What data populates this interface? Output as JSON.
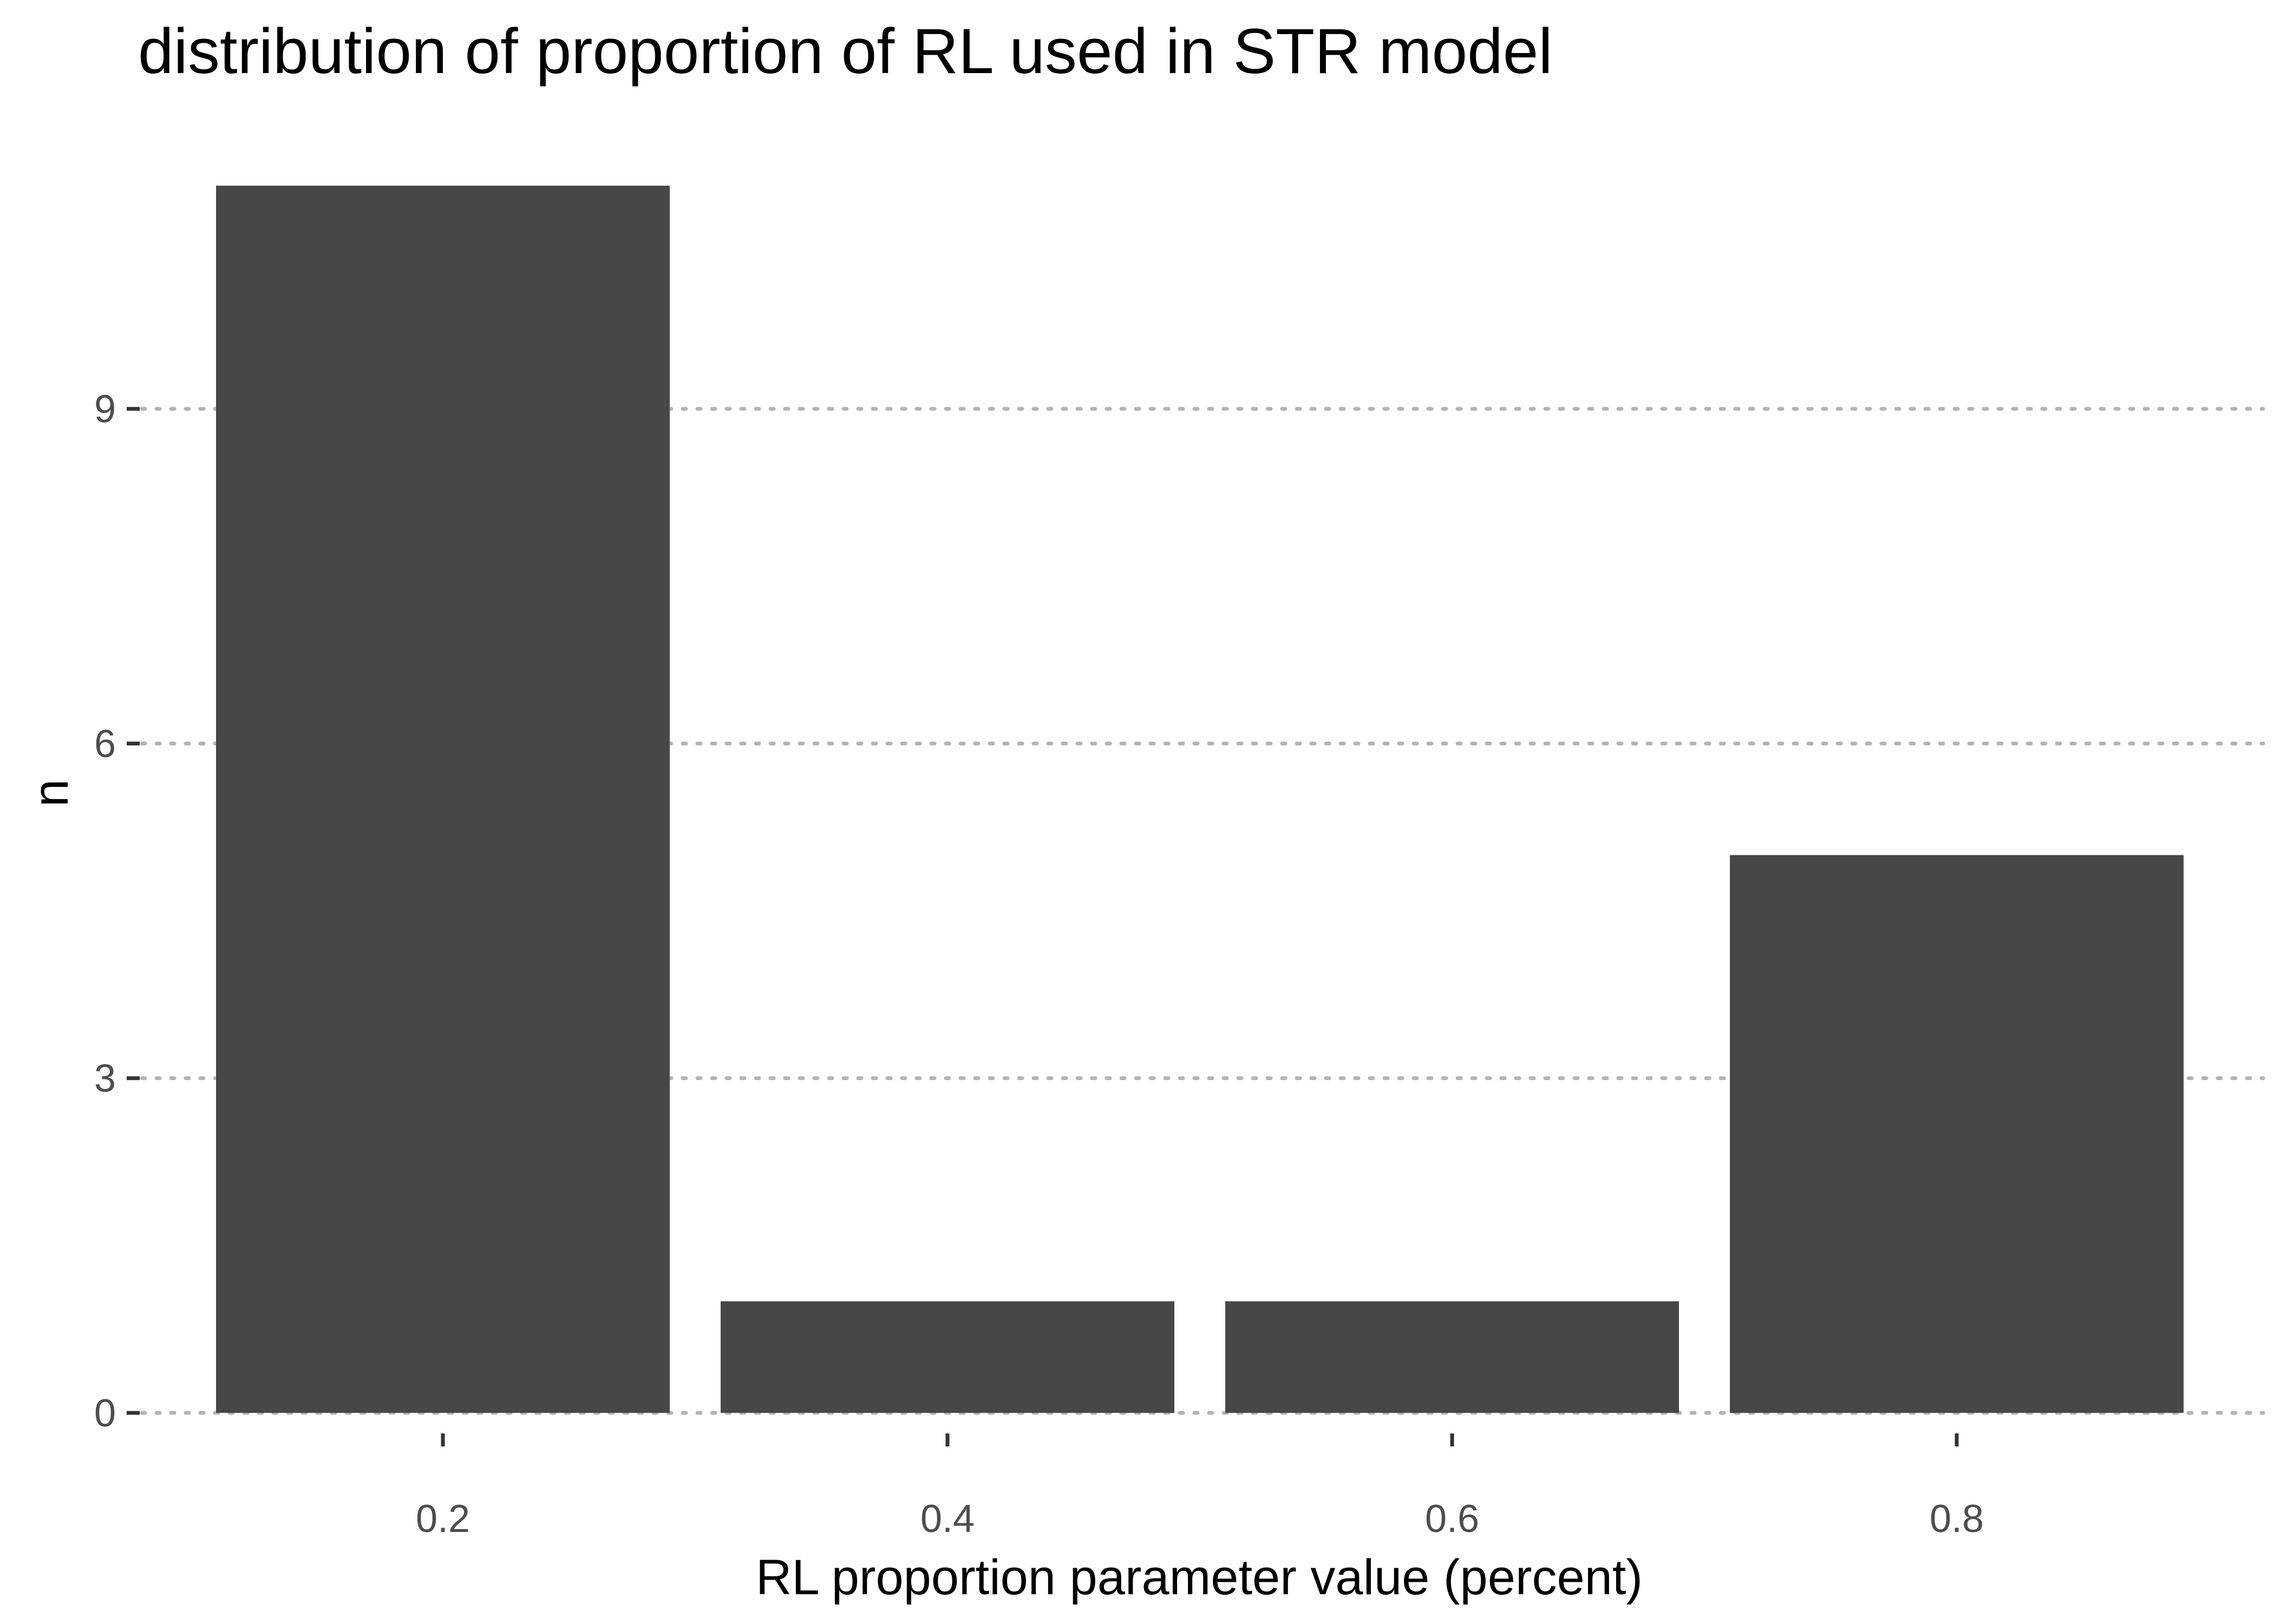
{
  "chart_data": {
    "type": "bar",
    "title": "distribution of proportion of RL used in STR model",
    "xlabel": "RL proportion parameter value (percent)",
    "ylabel": "n",
    "categories": [
      "0.2",
      "0.4",
      "0.6",
      "0.8"
    ],
    "values": [
      11,
      1,
      1,
      5
    ],
    "ylim": [
      0,
      11.5
    ],
    "yticks": [
      0,
      3,
      6,
      9
    ],
    "grid": "horizontal dotted",
    "legend": "none",
    "bar_color": "#474747",
    "grid_color": "#b3b3b3"
  }
}
